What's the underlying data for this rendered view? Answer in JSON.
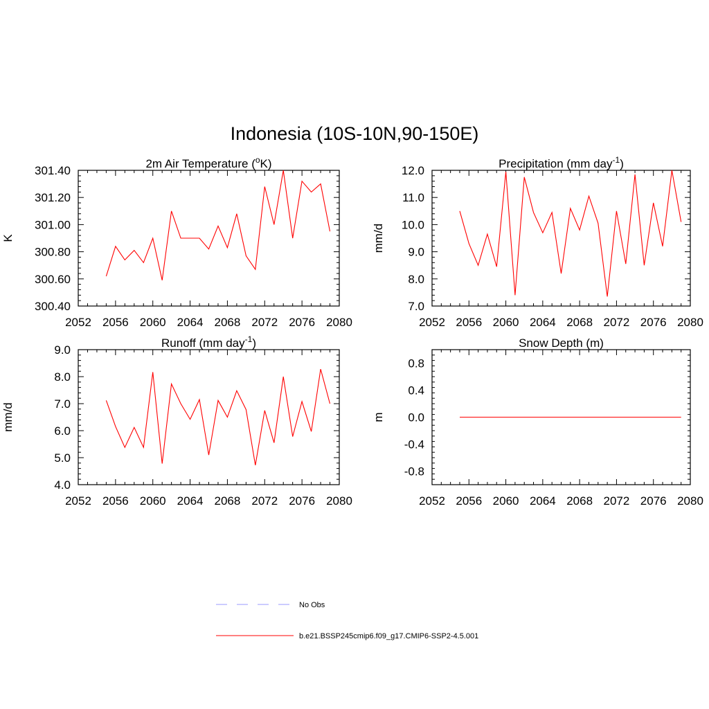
{
  "figure": {
    "title": "Indonesia (10S-10N,90-150E)"
  },
  "legend": {
    "entries": [
      {
        "label": "No Obs",
        "color": "#9999ff",
        "dashed": true
      },
      {
        "label": "b.e21.BSSP245cmip6.f09_g17.CMIP6-SSP2-4.5.001",
        "color": "#ff0000",
        "dashed": false
      }
    ]
  },
  "chart_data": [
    {
      "type": "line",
      "title": "2m Air Temperature (°K)",
      "ylabel": "K",
      "xlim": [
        2052,
        2080
      ],
      "ylim": [
        300.4,
        301.4
      ],
      "xticks": [
        "2052",
        "2056",
        "2060",
        "2064",
        "2068",
        "2072",
        "2076",
        "2080"
      ],
      "yticks": [
        "300.40",
        "300.60",
        "300.80",
        "301.00",
        "301.20",
        "301.40"
      ],
      "ytick_values": [
        300.4,
        300.6,
        300.8,
        301.0,
        301.2,
        301.4
      ],
      "grid": false,
      "series": [
        {
          "color": "#ff0000",
          "x": [
            2055,
            2056,
            2057,
            2058,
            2059,
            2060,
            2061,
            2062,
            2063,
            2064,
            2065,
            2066,
            2067,
            2068,
            2069,
            2070,
            2071,
            2072,
            2073,
            2074,
            2075,
            2076,
            2077,
            2078,
            2079
          ],
          "values": [
            300.62,
            300.84,
            300.74,
            300.81,
            300.72,
            300.9,
            300.59,
            301.1,
            300.9,
            300.9,
            300.9,
            300.82,
            300.99,
            300.83,
            301.08,
            300.77,
            300.67,
            301.28,
            301.0,
            301.4,
            300.9,
            301.32,
            301.24,
            301.3,
            300.95
          ]
        }
      ]
    },
    {
      "type": "line",
      "title": "Precipitation (mm day-1)",
      "ylabel": "mm/d",
      "xlim": [
        2052,
        2080
      ],
      "ylim": [
        7.0,
        12.0
      ],
      "xticks": [
        "2052",
        "2056",
        "2060",
        "2064",
        "2068",
        "2072",
        "2076",
        "2080"
      ],
      "yticks": [
        "7.0",
        "8.0",
        "9.0",
        "10.0",
        "11.0",
        "12.0"
      ],
      "ytick_values": [
        7,
        8,
        9,
        10,
        11,
        12
      ],
      "grid": false,
      "series": [
        {
          "color": "#ff0000",
          "x": [
            2055,
            2056,
            2057,
            2058,
            2059,
            2060,
            2061,
            2062,
            2063,
            2064,
            2065,
            2066,
            2067,
            2068,
            2069,
            2070,
            2071,
            2072,
            2073,
            2074,
            2075,
            2076,
            2077,
            2078,
            2079
          ],
          "values": [
            10.5,
            9.3,
            8.5,
            9.65,
            8.45,
            11.95,
            7.4,
            11.75,
            10.45,
            9.7,
            10.45,
            8.2,
            10.6,
            9.8,
            11.05,
            10.05,
            7.35,
            10.5,
            8.55,
            11.85,
            8.5,
            10.8,
            9.2,
            12.0,
            10.1
          ]
        }
      ]
    },
    {
      "type": "line",
      "title": "Runoff (mm day-1)",
      "ylabel": "mm/d",
      "xlim": [
        2052,
        2080
      ],
      "ylim": [
        4.0,
        9.0
      ],
      "xticks": [
        "2052",
        "2056",
        "2060",
        "2064",
        "2068",
        "2072",
        "2076",
        "2080"
      ],
      "yticks": [
        "4.0",
        "5.0",
        "6.0",
        "7.0",
        "8.0",
        "9.0"
      ],
      "ytick_values": [
        4,
        5,
        6,
        7,
        8,
        9
      ],
      "grid": false,
      "series": [
        {
          "color": "#ff0000",
          "x": [
            2055,
            2056,
            2057,
            2058,
            2059,
            2060,
            2061,
            2062,
            2063,
            2064,
            2065,
            2066,
            2067,
            2068,
            2069,
            2070,
            2071,
            2072,
            2073,
            2074,
            2075,
            2076,
            2077,
            2078,
            2079
          ],
          "values": [
            7.12,
            6.15,
            5.38,
            6.12,
            5.38,
            8.17,
            4.78,
            7.73,
            7.0,
            6.42,
            7.15,
            5.1,
            7.12,
            6.5,
            7.48,
            6.78,
            4.72,
            6.75,
            5.55,
            8.0,
            5.78,
            7.08,
            5.97,
            8.28,
            7.0
          ]
        }
      ]
    },
    {
      "type": "line",
      "title": "Snow Depth (m)",
      "ylabel": "m",
      "xlim": [
        2052,
        2080
      ],
      "ylim": [
        -1.0,
        1.0
      ],
      "xticks": [
        "2052",
        "2056",
        "2060",
        "2064",
        "2068",
        "2072",
        "2076",
        "2080"
      ],
      "yticks": [
        "-0.8",
        "-0.4",
        "0.0",
        "0.4",
        "0.8"
      ],
      "ytick_values": [
        -0.8,
        -0.4,
        0.0,
        0.4,
        0.8
      ],
      "grid": false,
      "series": [
        {
          "color": "#ff0000",
          "x": [
            2055,
            2056,
            2057,
            2058,
            2059,
            2060,
            2061,
            2062,
            2063,
            2064,
            2065,
            2066,
            2067,
            2068,
            2069,
            2070,
            2071,
            2072,
            2073,
            2074,
            2075,
            2076,
            2077,
            2078,
            2079
          ],
          "values": [
            0,
            0,
            0,
            0,
            0,
            0,
            0,
            0,
            0,
            0,
            0,
            0,
            0,
            0,
            0,
            0,
            0,
            0,
            0,
            0,
            0,
            0,
            0,
            0,
            0
          ]
        }
      ]
    }
  ]
}
